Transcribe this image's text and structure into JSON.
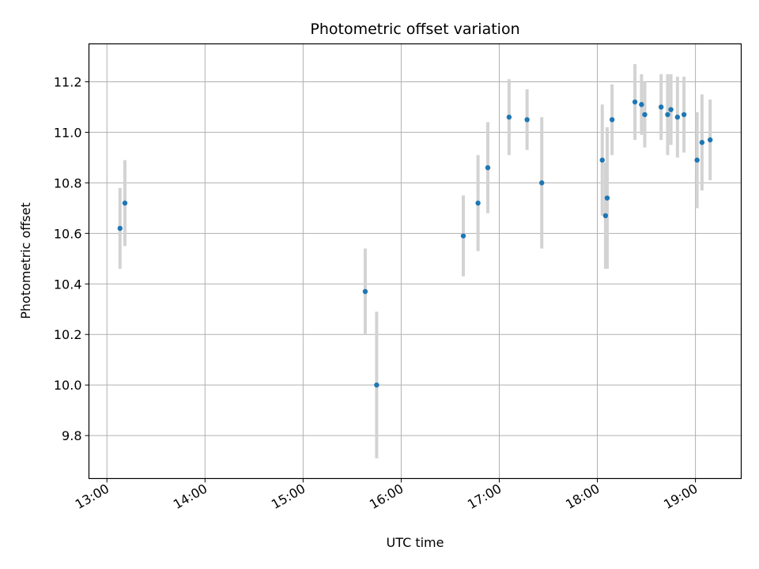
{
  "chart_data": {
    "type": "scatter",
    "title": "Photometric offset variation",
    "xlabel": "UTC time",
    "ylabel": "Photometric offset",
    "x_axis_type": "time",
    "xlim": [
      "12:49",
      "19:28"
    ],
    "ylim": [
      9.63,
      11.35
    ],
    "x_ticks": [
      "13:00",
      "14:00",
      "15:00",
      "16:00",
      "17:00",
      "18:00",
      "19:00"
    ],
    "y_ticks": [
      9.8,
      10.0,
      10.2,
      10.4,
      10.6,
      10.8,
      11.0,
      11.2
    ],
    "y_tick_labels": [
      "9.8",
      "10.0",
      "10.2",
      "10.4",
      "10.6",
      "10.8",
      "11.0",
      "11.2"
    ],
    "grid": true,
    "colors": {
      "marker": "#1f77b4",
      "errorbar": "#d3d3d3",
      "grid": "#b0b0b0"
    },
    "points": [
      {
        "x": "13:08",
        "y": 10.62,
        "err": 0.16
      },
      {
        "x": "13:11",
        "y": 10.72,
        "err": 0.17
      },
      {
        "x": "15:38",
        "y": 10.37,
        "err": 0.17
      },
      {
        "x": "15:45",
        "y": 10.0,
        "err": 0.29
      },
      {
        "x": "16:38",
        "y": 10.59,
        "err": 0.16
      },
      {
        "x": "16:47",
        "y": 10.72,
        "err": 0.19
      },
      {
        "x": "16:53",
        "y": 10.86,
        "err": 0.18
      },
      {
        "x": "17:06",
        "y": 11.06,
        "err": 0.15
      },
      {
        "x": "17:17",
        "y": 11.05,
        "err": 0.12
      },
      {
        "x": "17:26",
        "y": 10.8,
        "err": 0.26
      },
      {
        "x": "18:03",
        "y": 10.89,
        "err": 0.22
      },
      {
        "x": "18:05",
        "y": 10.67,
        "err": 0.21
      },
      {
        "x": "18:06",
        "y": 10.74,
        "err": 0.28
      },
      {
        "x": "18:09",
        "y": 11.05,
        "err": 0.14
      },
      {
        "x": "18:23",
        "y": 11.12,
        "err": 0.15
      },
      {
        "x": "18:27",
        "y": 11.11,
        "err": 0.12
      },
      {
        "x": "18:29",
        "y": 11.07,
        "err": 0.13
      },
      {
        "x": "18:39",
        "y": 11.1,
        "err": 0.13
      },
      {
        "x": "18:43",
        "y": 11.07,
        "err": 0.16
      },
      {
        "x": "18:45",
        "y": 11.09,
        "err": 0.14
      },
      {
        "x": "18:49",
        "y": 11.06,
        "err": 0.16
      },
      {
        "x": "18:53",
        "y": 11.07,
        "err": 0.15
      },
      {
        "x": "19:01",
        "y": 10.89,
        "err": 0.19
      },
      {
        "x": "19:04",
        "y": 10.96,
        "err": 0.19
      },
      {
        "x": "19:09",
        "y": 10.97,
        "err": 0.16
      }
    ]
  }
}
